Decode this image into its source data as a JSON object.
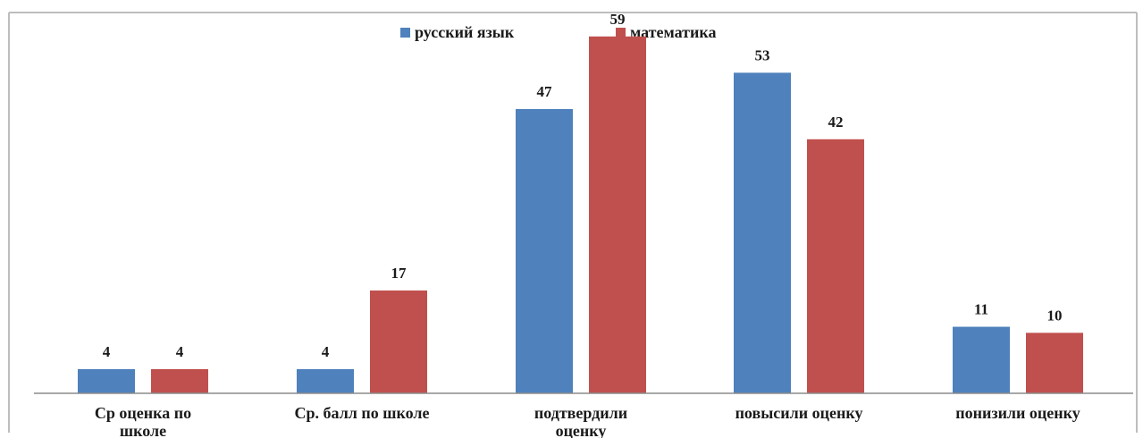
{
  "chart_data": {
    "type": "bar",
    "categories": [
      "Ср  оценка по школе",
      "Ср. балл по школе",
      "подтвердили оценку",
      "повысили оценку",
      "понизили оценку"
    ],
    "category_lines": [
      [
        "Ср  оценка по",
        "школе"
      ],
      [
        "Ср. балл по школе"
      ],
      [
        "подтвердили",
        "оценку"
      ],
      [
        "повысили оценку"
      ],
      [
        "понизили оценку"
      ]
    ],
    "series": [
      {
        "name": "русский язык",
        "color": "#4f81bd",
        "values": [
          4,
          4,
          47,
          53,
          11
        ]
      },
      {
        "name": "математика",
        "color": "#c0504d",
        "values": [
          4,
          17,
          59,
          42,
          10
        ]
      }
    ],
    "ylim": [
      0,
      60
    ],
    "grid": false,
    "legend_position": "top-center",
    "data_labels": true
  }
}
